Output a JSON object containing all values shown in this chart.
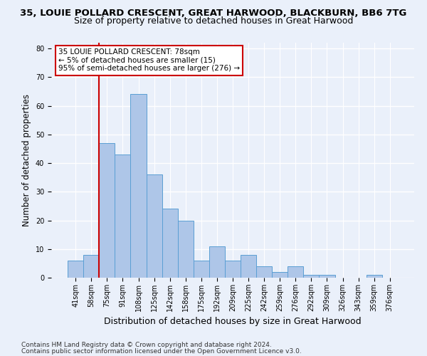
{
  "title1": "35, LOUIE POLLARD CRESCENT, GREAT HARWOOD, BLACKBURN, BB6 7TG",
  "title2": "Size of property relative to detached houses in Great Harwood",
  "xlabel": "Distribution of detached houses by size in Great Harwood",
  "ylabel": "Number of detached properties",
  "bar_labels": [
    "41sqm",
    "58sqm",
    "75sqm",
    "91sqm",
    "108sqm",
    "125sqm",
    "142sqm",
    "158sqm",
    "175sqm",
    "192sqm",
    "209sqm",
    "225sqm",
    "242sqm",
    "259sqm",
    "276sqm",
    "292sqm",
    "309sqm",
    "326sqm",
    "343sqm",
    "359sqm",
    "376sqm"
  ],
  "bar_values": [
    6,
    8,
    47,
    43,
    64,
    36,
    24,
    20,
    6,
    11,
    6,
    8,
    4,
    2,
    4,
    1,
    1,
    0,
    0,
    1,
    0
  ],
  "bar_color": "#aec6e8",
  "bar_edge_color": "#5a9fd4",
  "annotation_title": "35 LOUIE POLLARD CRESCENT: 78sqm",
  "annotation_line1": "← 5% of detached houses are smaller (15)",
  "annotation_line2": "95% of semi-detached houses are larger (276) →",
  "annotation_box_color": "#ffffff",
  "annotation_box_edge": "#cc0000",
  "red_line_color": "#cc0000",
  "ylim": [
    0,
    82
  ],
  "yticks": [
    0,
    10,
    20,
    30,
    40,
    50,
    60,
    70,
    80
  ],
  "footer1": "Contains HM Land Registry data © Crown copyright and database right 2024.",
  "footer2": "Contains public sector information licensed under the Open Government Licence v3.0.",
  "background_color": "#eaf0fa",
  "fig_background_color": "#eaf0fa",
  "grid_color": "#ffffff",
  "title1_fontsize": 9.5,
  "title2_fontsize": 9,
  "xlabel_fontsize": 9,
  "ylabel_fontsize": 8.5,
  "annotation_fontsize": 7.5,
  "footer_fontsize": 6.5,
  "tick_fontsize": 7
}
